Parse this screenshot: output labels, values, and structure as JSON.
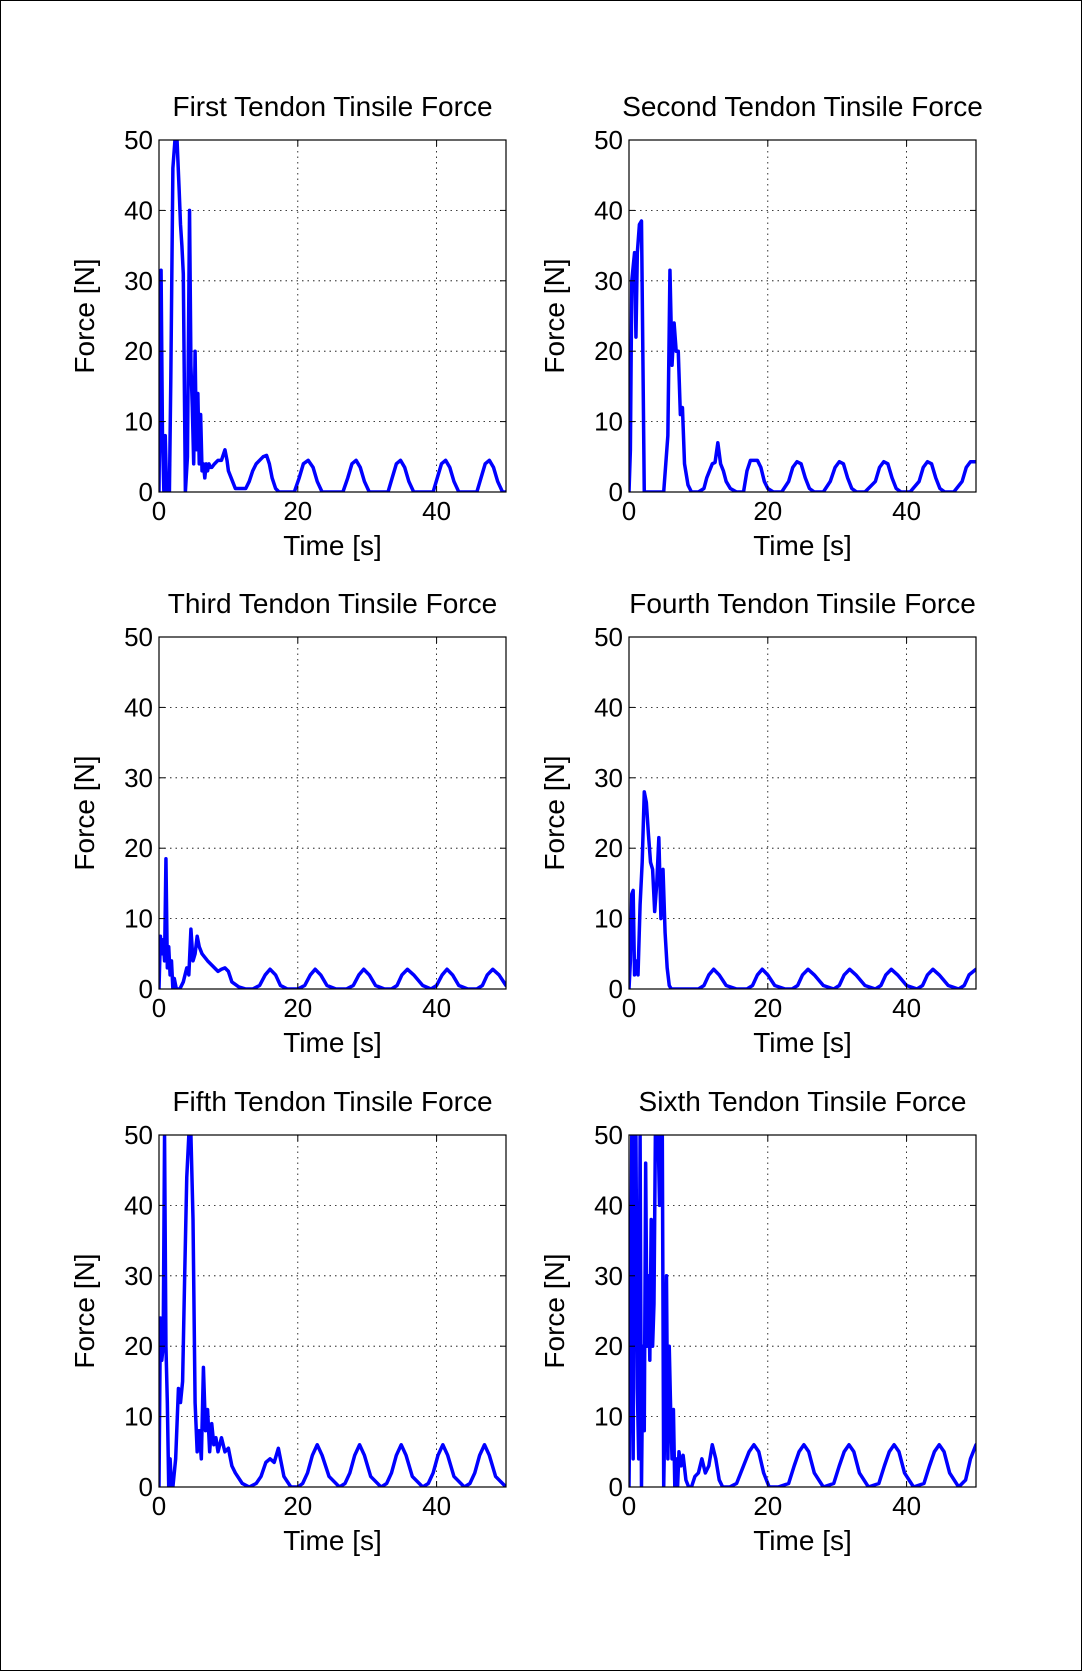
{
  "chart_data": [
    {
      "type": "line",
      "title": "First Tendon Tinsile Force",
      "xlabel": "Time   [s]",
      "ylabel": "Force   [N]",
      "xlim": [
        0,
        50
      ],
      "ylim": [
        0,
        50
      ],
      "xticks": [
        0,
        20,
        40
      ],
      "yticks": [
        0,
        10,
        20,
        30,
        40,
        50
      ],
      "grid": true,
      "series": [
        {
          "color": "#0000ff",
          "x": [
            0,
            0.3,
            0.5,
            0.7,
            0.9,
            1.1,
            1.3,
            1.5,
            1.7,
            2.0,
            2.3,
            2.6,
            2.9,
            3.1,
            3.3,
            3.5,
            3.8,
            4.1,
            4.4,
            4.6,
            4.8,
            5.0,
            5.2,
            5.4,
            5.6,
            5.8,
            6.0,
            6.2,
            6.4,
            6.6,
            6.8,
            7.0,
            7.2,
            7.4,
            7.6,
            8.0,
            8.5,
            9.0,
            9.5,
            9.8,
            10.0,
            10.4,
            11.0,
            12.5,
            13.0,
            13.5,
            14.0,
            14.5,
            15.0,
            15.5,
            15.9,
            16.3,
            16.8,
            17.3,
            18.0,
            19.5,
            20.2,
            20.8,
            21.5,
            22.2,
            22.8,
            23.5,
            25.0,
            26.5,
            27.2,
            27.8,
            28.4,
            29.0,
            29.6,
            30.3,
            31.5,
            33.0,
            33.6,
            34.2,
            34.8,
            35.4,
            36.0,
            36.7,
            38.0,
            39.5,
            40.1,
            40.7,
            41.3,
            41.9,
            42.5,
            43.2,
            44.5,
            45.8,
            46.4,
            47.0,
            47.6,
            48.2,
            48.8,
            49.5,
            50
          ],
          "y": [
            0,
            31.5,
            8,
            0,
            8,
            0,
            0,
            0,
            16,
            46,
            50,
            50,
            43,
            38,
            35,
            31,
            0,
            5,
            40,
            18,
            12,
            4,
            20,
            6,
            14,
            4,
            11,
            3,
            4,
            2,
            4,
            3,
            4,
            3.5,
            3.5,
            4,
            4.5,
            4.5,
            6,
            4.5,
            3,
            2,
            0.5,
            0.5,
            1.5,
            3,
            4,
            4.5,
            5,
            5.2,
            4,
            2,
            0.5,
            0,
            0,
            0,
            2,
            4,
            4.5,
            3.5,
            1.5,
            0,
            0,
            0,
            2,
            4,
            4.5,
            3.5,
            1.5,
            0,
            0,
            0,
            2,
            4,
            4.5,
            3.5,
            1.5,
            0,
            0,
            0,
            2,
            4,
            4.5,
            3.5,
            1.5,
            0,
            0,
            0,
            2,
            4,
            4.5,
            3.5,
            1.5,
            0,
            0
          ]
        }
      ]
    },
    {
      "type": "line",
      "title": "Second Tendon Tinsile Force",
      "xlabel": "Time   [s]",
      "ylabel": "Force   [N]",
      "xlim": [
        0,
        50
      ],
      "ylim": [
        0,
        50
      ],
      "xticks": [
        0,
        20,
        40
      ],
      "yticks": [
        0,
        10,
        20,
        30,
        40,
        50
      ],
      "grid": true,
      "series": [
        {
          "color": "#0000ff",
          "x": [
            0,
            0.2,
            0.4,
            0.6,
            0.8,
            1.0,
            1.2,
            1.5,
            1.8,
            2.2,
            3.0,
            4.0,
            5.0,
            5.6,
            5.9,
            6.2,
            6.5,
            6.8,
            7.1,
            7.4,
            7.7,
            8.0,
            8.5,
            9.0,
            10.0,
            10.8,
            11.2,
            11.6,
            12.0,
            12.4,
            12.8,
            13.2,
            13.6,
            14.0,
            14.6,
            15.5,
            16.5,
            17.0,
            17.5,
            18.0,
            18.5,
            19.0,
            19.5,
            20.0,
            20.8,
            22.0,
            23.0,
            23.6,
            24.2,
            24.8,
            25.4,
            26.0,
            26.7,
            28.0,
            29.0,
            29.7,
            30.3,
            30.9,
            31.5,
            32.1,
            32.8,
            34.0,
            35.5,
            36.1,
            36.7,
            37.3,
            37.9,
            38.5,
            39.2,
            40.5,
            41.8,
            42.4,
            43.0,
            43.6,
            44.2,
            44.8,
            45.5,
            46.8,
            48.0,
            48.6,
            49.2,
            50
          ],
          "y": [
            0,
            6,
            30,
            32,
            34,
            22,
            34,
            38,
            38.5,
            0,
            0,
            0,
            0,
            8,
            31.5,
            18,
            24,
            20,
            20,
            11,
            12,
            4,
            1,
            0,
            0,
            0.5,
            2,
            3,
            4,
            4.2,
            7,
            4,
            3,
            1.5,
            0.5,
            0,
            0,
            3,
            4.5,
            4.5,
            4.5,
            3.5,
            1.5,
            0.5,
            0,
            0,
            1.5,
            3.5,
            4.3,
            4,
            2,
            0.5,
            0,
            0,
            1.5,
            3.5,
            4.3,
            4,
            2,
            0.5,
            0,
            0,
            1.5,
            3.5,
            4.3,
            4,
            2,
            0.5,
            0,
            0,
            1.5,
            3.5,
            4.3,
            4,
            2,
            0.5,
            0,
            0,
            1.5,
            3.5,
            4.3,
            4.3
          ]
        }
      ]
    },
    {
      "type": "line",
      "title": "Third Tendon Tinsile Force",
      "xlabel": "Time   [s]",
      "ylabel": "Force   [N]",
      "xlim": [
        0,
        50
      ],
      "ylim": [
        0,
        50
      ],
      "xticks": [
        0,
        20,
        40
      ],
      "yticks": [
        0,
        10,
        20,
        30,
        40,
        50
      ],
      "grid": true,
      "series": [
        {
          "color": "#0000ff",
          "x": [
            0,
            0.2,
            0.4,
            0.6,
            0.8,
            1.0,
            1.2,
            1.4,
            1.6,
            1.8,
            2.0,
            2.2,
            2.5,
            3.0,
            3.5,
            4.0,
            4.3,
            4.6,
            4.9,
            5.2,
            5.5,
            5.8,
            6.2,
            6.6,
            7.0,
            7.5,
            8.0,
            8.5,
            9.0,
            9.5,
            10.0,
            10.5,
            11.5,
            12.5,
            13.5,
            14.5,
            15.3,
            16.0,
            16.8,
            17.5,
            18.5,
            20.0,
            21.0,
            21.8,
            22.5,
            23.3,
            24.2,
            25.5,
            27.0,
            28.0,
            28.8,
            29.5,
            30.3,
            31.2,
            32.5,
            33.5,
            34.3,
            35.0,
            35.8,
            36.7,
            38.0,
            39.2,
            40.0,
            40.8,
            41.5,
            42.3,
            43.2,
            44.5,
            45.8,
            46.6,
            47.3,
            48.1,
            49.0,
            50
          ],
          "y": [
            0,
            7.5,
            5,
            7,
            4,
            18.5,
            3,
            6,
            2,
            4,
            0,
            1.5,
            0,
            0,
            1,
            3,
            2,
            8.5,
            4,
            5,
            7.5,
            6,
            5,
            4.5,
            4,
            3.5,
            3,
            2.5,
            2.8,
            3,
            2.5,
            1,
            0.3,
            0,
            0,
            0.5,
            2,
            2.8,
            2,
            0.5,
            0,
            0,
            0.5,
            2,
            2.8,
            2,
            0.5,
            0,
            0,
            0.5,
            2,
            2.8,
            2,
            0.5,
            0,
            0,
            0.5,
            2,
            2.8,
            2,
            0.5,
            0,
            0.5,
            2,
            2.8,
            2,
            0.5,
            0,
            0,
            0.5,
            2,
            2.8,
            2,
            0.5
          ]
        }
      ]
    },
    {
      "type": "line",
      "title": "Fourth Tendon Tinsile Force",
      "xlabel": "Time   [s]",
      "ylabel": "Force   [N]",
      "xlim": [
        0,
        50
      ],
      "ylim": [
        0,
        50
      ],
      "xticks": [
        0,
        20,
        40
      ],
      "yticks": [
        0,
        10,
        20,
        30,
        40,
        50
      ],
      "grid": true,
      "series": [
        {
          "color": "#0000ff",
          "x": [
            0,
            0.2,
            0.4,
            0.6,
            0.8,
            1.0,
            1.3,
            1.6,
            1.9,
            2.2,
            2.5,
            2.8,
            3.1,
            3.4,
            3.7,
            4.0,
            4.3,
            4.6,
            4.9,
            5.2,
            5.5,
            5.8,
            6.1,
            6.5,
            7.0,
            8.0,
            9.0,
            10.0,
            10.8,
            11.5,
            12.2,
            13.0,
            14.0,
            15.5,
            17.0,
            17.8,
            18.5,
            19.2,
            20.0,
            21.0,
            22.5,
            23.5,
            24.3,
            25.0,
            25.8,
            26.7,
            28.0,
            29.5,
            30.3,
            31.0,
            31.8,
            32.7,
            34.0,
            35.5,
            36.3,
            37.0,
            37.8,
            38.7,
            40.0,
            41.5,
            42.3,
            43.0,
            43.8,
            44.7,
            46.0,
            47.5,
            48.3,
            49.0,
            50
          ],
          "y": [
            0,
            4,
            13.5,
            14,
            2,
            4,
            2,
            12,
            18,
            28,
            26.5,
            22,
            18,
            17,
            11,
            15,
            21.5,
            10,
            17,
            8,
            3,
            0.5,
            0,
            0,
            0,
            0,
            0,
            0,
            0.5,
            2,
            2.8,
            2,
            0.5,
            0,
            0,
            0.5,
            2,
            2.8,
            2,
            0.5,
            0,
            0,
            0.5,
            2,
            2.8,
            2,
            0.5,
            0,
            0.5,
            2,
            2.8,
            2,
            0.5,
            0,
            0.5,
            2,
            2.8,
            2,
            0.5,
            0,
            0.5,
            2,
            2.8,
            2,
            0.5,
            0,
            0.5,
            2,
            2.8
          ]
        }
      ]
    },
    {
      "type": "line",
      "title": "Fifth Tendon Tinsile Force",
      "xlabel": "Time   [s]",
      "ylabel": "Force   [N]",
      "xlim": [
        0,
        50
      ],
      "ylim": [
        0,
        50
      ],
      "xticks": [
        0,
        20,
        40
      ],
      "yticks": [
        0,
        10,
        20,
        30,
        40,
        50
      ],
      "grid": true,
      "series": [
        {
          "color": "#0000ff",
          "x": [
            0,
            0.2,
            0.4,
            0.6,
            0.8,
            1.0,
            1.2,
            1.4,
            1.6,
            1.8,
            2.0,
            2.4,
            2.8,
            3.1,
            3.4,
            3.7,
            4.0,
            4.3,
            4.6,
            4.9,
            5.2,
            5.5,
            5.8,
            6.1,
            6.4,
            6.7,
            7.0,
            7.3,
            7.6,
            7.9,
            8.2,
            8.5,
            9.0,
            9.5,
            10.0,
            10.5,
            11.0,
            12.0,
            13.0,
            14.0,
            14.7,
            15.4,
            16.0,
            16.6,
            17.2,
            18.0,
            19.0,
            20.0,
            20.7,
            21.4,
            22.1,
            22.8,
            23.5,
            24.5,
            26.0,
            26.8,
            27.5,
            28.2,
            28.9,
            29.6,
            30.5,
            32.0,
            32.8,
            33.5,
            34.2,
            34.9,
            35.6,
            36.5,
            38.0,
            38.8,
            39.5,
            40.2,
            40.9,
            41.6,
            42.5,
            44.0,
            44.8,
            45.5,
            46.2,
            46.9,
            47.6,
            48.5,
            50
          ],
          "y": [
            0,
            24,
            18,
            20,
            50,
            20,
            12,
            0,
            4,
            0,
            0,
            4,
            14,
            12,
            15,
            30,
            44,
            50,
            50,
            38,
            12,
            5,
            8,
            4,
            17,
            8,
            11,
            5,
            9,
            6,
            7,
            5,
            7,
            5,
            5.5,
            3,
            2,
            0.5,
            0,
            0.5,
            1.5,
            3.5,
            4,
            3.5,
            5.5,
            1.5,
            0,
            0,
            0.5,
            2,
            4.5,
            6,
            4.5,
            1.5,
            0,
            0.5,
            2,
            4.5,
            6,
            4.5,
            1.5,
            0,
            0.5,
            2,
            4.5,
            6,
            4.5,
            1.5,
            0,
            0.5,
            2,
            4.5,
            6,
            4.5,
            1.5,
            0,
            0.5,
            2,
            4.5,
            6,
            4.5,
            1.5,
            0
          ]
        }
      ]
    },
    {
      "type": "line",
      "title": "Sixth Tendon Tinsile Force",
      "xlabel": "Time   [s]",
      "ylabel": "Force   [N]",
      "xlim": [
        0,
        50
      ],
      "ylim": [
        0,
        50
      ],
      "xticks": [
        0,
        20,
        40
      ],
      "yticks": [
        0,
        10,
        20,
        30,
        40,
        50
      ],
      "grid": true,
      "series": [
        {
          "color": "#0000ff",
          "x": [
            0,
            0.2,
            0.4,
            0.6,
            0.8,
            1.0,
            1.2,
            1.4,
            1.6,
            1.8,
            2.0,
            2.2,
            2.4,
            2.6,
            2.8,
            3.0,
            3.2,
            3.4,
            3.6,
            3.8,
            4.0,
            4.2,
            4.4,
            4.6,
            4.8,
            5.0,
            5.2,
            5.4,
            5.6,
            5.8,
            6.0,
            6.2,
            6.4,
            6.6,
            6.8,
            7.0,
            7.2,
            7.5,
            7.8,
            8.2,
            8.6,
            9.0,
            9.5,
            10.0,
            10.5,
            11.0,
            11.5,
            12.0,
            12.5,
            13.0,
            13.5,
            14.5,
            15.5,
            16.5,
            17.3,
            18.0,
            18.7,
            19.4,
            20.2,
            21.5,
            23.0,
            23.8,
            24.5,
            25.2,
            25.9,
            26.7,
            28.0,
            29.5,
            30.3,
            31.0,
            31.7,
            32.4,
            33.2,
            34.5,
            36.0,
            36.8,
            37.5,
            38.2,
            38.9,
            39.7,
            41.0,
            42.5,
            43.3,
            44.0,
            44.7,
            45.4,
            46.2,
            47.5,
            48.5,
            49.2,
            50
          ],
          "y": [
            0,
            20,
            50,
            4,
            50,
            50,
            14,
            4,
            50,
            0,
            20,
            8,
            46,
            20,
            30,
            18,
            38,
            20,
            26,
            50,
            50,
            50,
            40,
            50,
            50,
            0,
            12,
            30,
            4,
            20,
            11,
            4,
            11,
            0,
            4,
            0,
            5,
            3,
            4.5,
            1,
            0,
            0,
            1.5,
            2,
            4,
            2,
            3,
            6,
            4,
            1,
            0,
            0,
            0.5,
            3,
            5,
            6,
            5,
            2,
            0,
            0,
            0.5,
            3,
            5,
            6,
            5,
            2,
            0,
            0.5,
            3,
            5,
            6,
            5,
            2,
            0,
            0.5,
            3,
            5,
            6,
            5,
            2,
            0,
            0.5,
            3,
            5,
            6,
            5,
            2,
            0,
            1,
            4,
            6
          ]
        }
      ]
    }
  ]
}
